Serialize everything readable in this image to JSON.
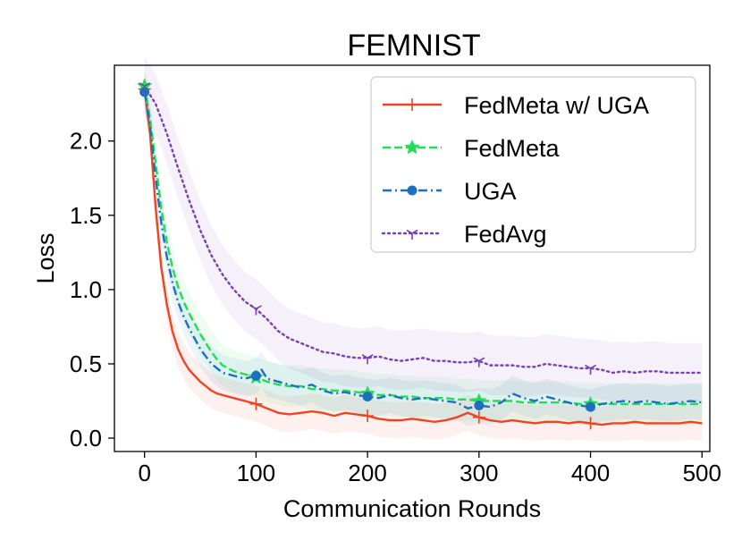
{
  "chart_data": {
    "type": "line",
    "title": "FEMNIST",
    "xlabel": "Communication Rounds",
    "ylabel": "Loss",
    "xlim": [
      -27,
      507
    ],
    "ylim": [
      -0.09,
      2.51
    ],
    "xticks": [
      0,
      100,
      200,
      300,
      400,
      500
    ],
    "xtick_labels": [
      "0",
      "100",
      "200",
      "300",
      "400",
      "500"
    ],
    "yticks": [
      0.0,
      0.5,
      1.0,
      1.5,
      2.0
    ],
    "ytick_labels": [
      "0.0",
      "0.5",
      "1.0",
      "1.5",
      "2.0"
    ],
    "grid": false,
    "legend_position": "top-right",
    "series": [
      {
        "name": "FedMeta w/ UGA",
        "color": "#ee4422",
        "dash": "solid",
        "marker": "plus",
        "band": 0.12,
        "x": [
          0,
          5,
          10,
          15,
          20,
          25,
          30,
          35,
          40,
          45,
          50,
          55,
          60,
          65,
          70,
          80,
          90,
          100,
          110,
          120,
          130,
          140,
          150,
          160,
          170,
          180,
          190,
          200,
          210,
          220,
          230,
          240,
          250,
          260,
          270,
          280,
          290,
          300,
          310,
          320,
          330,
          340,
          350,
          360,
          370,
          380,
          390,
          400,
          410,
          420,
          430,
          440,
          450,
          460,
          470,
          480,
          490,
          500
        ],
        "values": [
          2.35,
          2.05,
          1.55,
          1.15,
          0.9,
          0.72,
          0.6,
          0.52,
          0.46,
          0.42,
          0.38,
          0.35,
          0.32,
          0.3,
          0.29,
          0.27,
          0.25,
          0.23,
          0.2,
          0.17,
          0.16,
          0.17,
          0.18,
          0.17,
          0.15,
          0.17,
          0.16,
          0.15,
          0.13,
          0.12,
          0.12,
          0.13,
          0.12,
          0.11,
          0.12,
          0.14,
          0.17,
          0.14,
          0.12,
          0.11,
          0.12,
          0.11,
          0.1,
          0.11,
          0.11,
          0.1,
          0.11,
          0.1,
          0.09,
          0.1,
          0.1,
          0.11,
          0.1,
          0.1,
          0.1,
          0.1,
          0.11,
          0.1
        ],
        "marker_x": [
          0,
          100,
          200,
          300,
          400
        ]
      },
      {
        "name": "FedMeta",
        "color": "#22dd55",
        "dash": "dashed",
        "marker": "star",
        "band": 0.14,
        "x": [
          0,
          5,
          10,
          15,
          20,
          25,
          30,
          35,
          40,
          45,
          50,
          55,
          60,
          65,
          70,
          80,
          90,
          100,
          110,
          120,
          130,
          140,
          150,
          160,
          170,
          180,
          190,
          200,
          210,
          220,
          230,
          240,
          250,
          260,
          270,
          280,
          290,
          300,
          310,
          320,
          330,
          340,
          350,
          360,
          370,
          380,
          390,
          400,
          410,
          420,
          430,
          440,
          450,
          460,
          470,
          480,
          490,
          500
        ],
        "values": [
          2.37,
          2.15,
          1.85,
          1.55,
          1.32,
          1.15,
          1.02,
          0.92,
          0.84,
          0.77,
          0.7,
          0.64,
          0.58,
          0.53,
          0.49,
          0.45,
          0.43,
          0.41,
          0.38,
          0.36,
          0.35,
          0.35,
          0.33,
          0.33,
          0.32,
          0.32,
          0.31,
          0.3,
          0.29,
          0.29,
          0.28,
          0.28,
          0.27,
          0.27,
          0.27,
          0.26,
          0.26,
          0.25,
          0.25,
          0.25,
          0.25,
          0.24,
          0.24,
          0.24,
          0.24,
          0.24,
          0.23,
          0.23,
          0.23,
          0.23,
          0.23,
          0.23,
          0.23,
          0.23,
          0.23,
          0.23,
          0.23,
          0.23
        ],
        "marker_x": [
          0,
          100,
          200,
          300,
          400
        ]
      },
      {
        "name": "UGA",
        "color": "#1f6fc0",
        "dash": "dashdot",
        "marker": "circle",
        "band": 0.12,
        "x": [
          0,
          5,
          10,
          15,
          20,
          25,
          30,
          35,
          40,
          45,
          50,
          55,
          60,
          65,
          70,
          80,
          90,
          100,
          105,
          110,
          120,
          130,
          140,
          150,
          160,
          170,
          180,
          190,
          200,
          210,
          220,
          230,
          240,
          250,
          260,
          270,
          280,
          290,
          300,
          310,
          320,
          330,
          340,
          350,
          360,
          370,
          380,
          390,
          400,
          410,
          420,
          430,
          440,
          450,
          460,
          470,
          480,
          490,
          500
        ],
        "values": [
          2.33,
          2.1,
          1.75,
          1.45,
          1.22,
          1.05,
          0.92,
          0.82,
          0.74,
          0.67,
          0.6,
          0.55,
          0.5,
          0.47,
          0.44,
          0.42,
          0.4,
          0.42,
          0.46,
          0.4,
          0.38,
          0.36,
          0.34,
          0.36,
          0.32,
          0.3,
          0.31,
          0.29,
          0.28,
          0.27,
          0.29,
          0.27,
          0.26,
          0.27,
          0.26,
          0.25,
          0.24,
          0.2,
          0.22,
          0.21,
          0.24,
          0.3,
          0.27,
          0.25,
          0.28,
          0.26,
          0.24,
          0.22,
          0.21,
          0.23,
          0.24,
          0.25,
          0.24,
          0.25,
          0.24,
          0.23,
          0.24,
          0.25,
          0.24
        ],
        "marker_x": [
          0,
          100,
          200,
          300,
          400
        ]
      },
      {
        "name": "FedAvg",
        "color": "#7a3fb0",
        "dash": "dotted",
        "marker": "tri",
        "band": 0.2,
        "x": [
          0,
          10,
          20,
          30,
          40,
          50,
          60,
          70,
          80,
          90,
          100,
          110,
          120,
          130,
          140,
          150,
          160,
          170,
          180,
          190,
          200,
          210,
          220,
          230,
          240,
          250,
          260,
          270,
          280,
          290,
          300,
          310,
          320,
          330,
          340,
          350,
          360,
          370,
          380,
          390,
          400,
          410,
          420,
          430,
          440,
          450,
          460,
          470,
          480,
          490,
          500
        ],
        "values": [
          2.37,
          2.25,
          2.05,
          1.82,
          1.6,
          1.4,
          1.23,
          1.1,
          1.0,
          0.92,
          0.87,
          0.8,
          0.72,
          0.67,
          0.64,
          0.61,
          0.58,
          0.57,
          0.55,
          0.54,
          0.54,
          0.55,
          0.53,
          0.52,
          0.53,
          0.54,
          0.52,
          0.52,
          0.51,
          0.51,
          0.52,
          0.49,
          0.49,
          0.49,
          0.48,
          0.48,
          0.5,
          0.49,
          0.48,
          0.47,
          0.47,
          0.46,
          0.44,
          0.45,
          0.44,
          0.45,
          0.45,
          0.44,
          0.44,
          0.44,
          0.44
        ],
        "marker_x": [
          0,
          100,
          200,
          300,
          400
        ]
      }
    ]
  }
}
